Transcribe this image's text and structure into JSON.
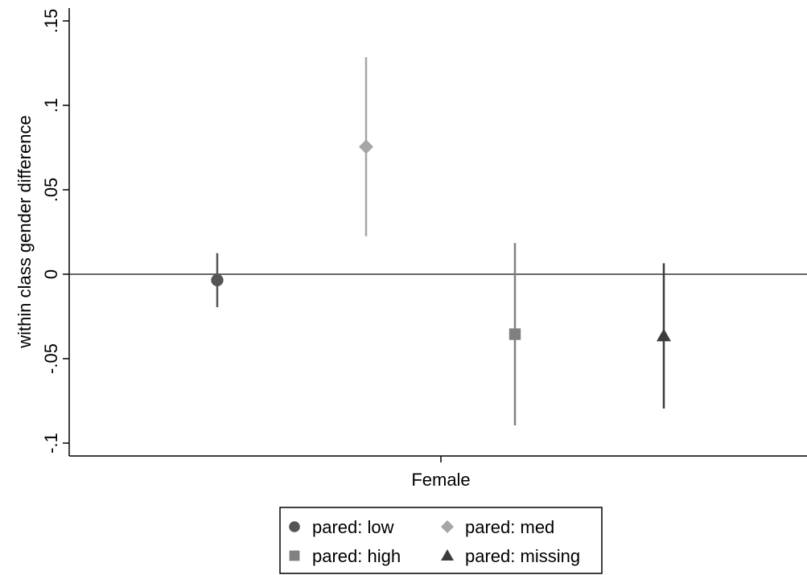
{
  "chart_data": {
    "type": "scatter",
    "title": "",
    "xlabel": "Female",
    "ylabel": "within class gender difference",
    "ylim": [
      -0.105,
      0.155
    ],
    "yticks": [
      -0.1,
      -0.05,
      0,
      0.05,
      0.1,
      0.15
    ],
    "ytick_labels": [
      "-.1",
      "-.05",
      "0",
      ".05",
      ".1",
      ".15"
    ],
    "reference_line": 0,
    "grid": false,
    "legend_position": "bottom",
    "series": [
      {
        "name": "pared: low",
        "marker": "circle",
        "color": "#555555",
        "estimate": -0.0035,
        "ci_low": -0.0195,
        "ci_high": 0.0125
      },
      {
        "name": "pared: med",
        "marker": "diamond",
        "color": "#a6a6a6",
        "estimate": 0.0755,
        "ci_low": 0.0225,
        "ci_high": 0.1285
      },
      {
        "name": "pared: high",
        "marker": "square",
        "color": "#808080",
        "estimate": -0.0355,
        "ci_low": -0.0895,
        "ci_high": 0.0185
      },
      {
        "name": "pared: missing",
        "marker": "triangle",
        "color": "#3c3c3c",
        "estimate": -0.0365,
        "ci_low": -0.0795,
        "ci_high": 0.0065
      }
    ]
  }
}
